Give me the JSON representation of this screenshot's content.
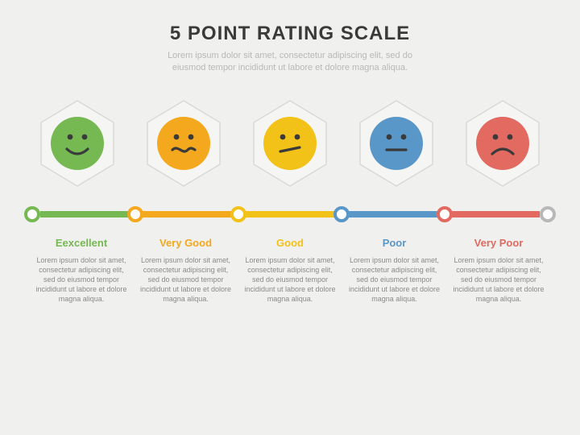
{
  "type": "infographic",
  "background_color": "#f0f0ee",
  "title": {
    "text": "5 POINT RATING SCALE",
    "color": "#3a3a3a",
    "fontsize": 24
  },
  "subtitle": {
    "text": "Lorem ipsum dolor sit amet, consectetur adipiscing elit, sed do\neiusmod tempor incididunt ut labore et dolore magna aliqua.",
    "color": "#b8b8b8",
    "fontsize": 11
  },
  "hexagon": {
    "fill": "#f5f5f4",
    "stroke": "#d9d9d7",
    "stroke_width": 1.5
  },
  "face_feature_color": "#3a3a3a",
  "timeline_end_dot_color": "#b8b8b8",
  "items": [
    {
      "label": "Eexcellent",
      "color": "#76b852",
      "mouth": "smile",
      "body": "Lorem ipsum dolor sit amet, consectetur adipiscing elit, sed do eiusmod tempor incididunt ut labore et dolore magna aliqua."
    },
    {
      "label": "Very Good",
      "color": "#f4a81d",
      "mouth": "wave",
      "body": "Lorem ipsum dolor sit amet, consectetur adipiscing elit, sed do eiusmod tempor incididunt ut labore et dolore magna aliqua."
    },
    {
      "label": "Good",
      "color": "#f3c218",
      "mouth": "slant",
      "body": "Lorem ipsum dolor sit amet, consectetur adipiscing elit, sed do eiusmod tempor incididunt ut labore et dolore magna aliqua."
    },
    {
      "label": "Poor",
      "color": "#5a97c9",
      "mouth": "flat",
      "body": "Lorem ipsum dolor sit amet, consectetur adipiscing elit, sed do eiusmod tempor incididunt ut labore et dolore magna aliqua."
    },
    {
      "label": "Very Poor",
      "color": "#e26a61",
      "mouth": "frown",
      "body": "Lorem ipsum dolor sit amet, consectetur adipiscing elit, sed do eiusmod tempor incididunt ut labore et dolore magna aliqua."
    }
  ],
  "label_fontsize": 13,
  "body_fontsize": 9,
  "body_color": "#8a8a8a"
}
